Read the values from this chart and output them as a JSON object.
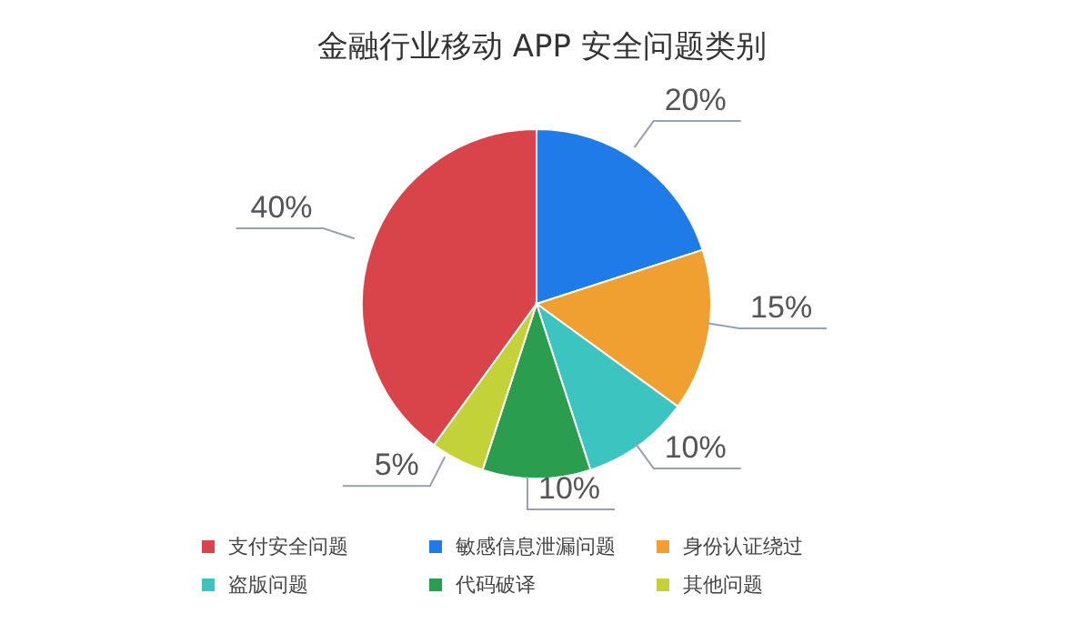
{
  "chart_data": {
    "type": "pie",
    "title": "金融行业移动 APP 安全问题类别",
    "categories": [
      "支付安全问题",
      "敏感信息泄漏问题",
      "身份认证绕过",
      "盗版问题",
      "代码破译",
      "其他问题"
    ],
    "values": [
      40,
      20,
      15,
      10,
      10,
      5
    ],
    "colors": [
      "#d9434a",
      "#1e7be8",
      "#f0a030",
      "#3cc4c0",
      "#2a9d4e",
      "#c4d23a"
    ],
    "value_labels": [
      "40%",
      "20%",
      "15%",
      "10%",
      "10%",
      "5%"
    ],
    "legend": "bottom"
  }
}
